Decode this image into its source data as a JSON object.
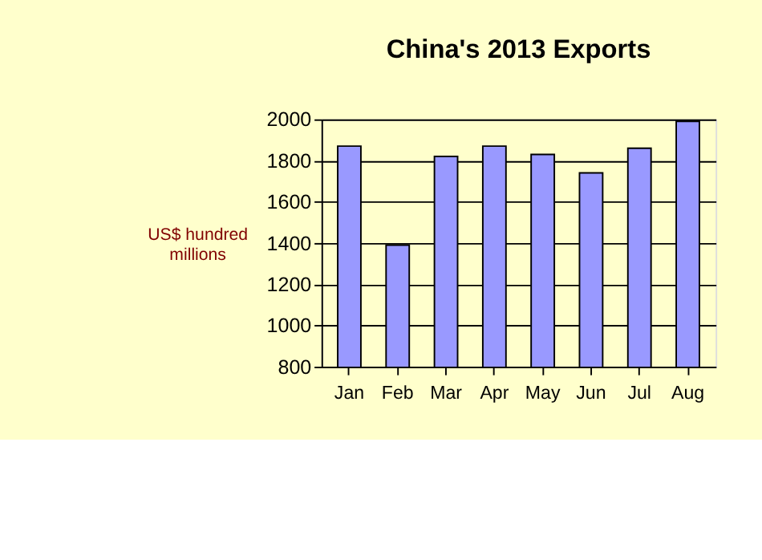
{
  "chart_data": {
    "type": "bar",
    "title": "China's 2013 Exports",
    "ylabel": "US$ hundred millions",
    "categories": [
      "Jan",
      "Feb",
      "Mar",
      "Apr",
      "May",
      "Jun",
      "Jul",
      "Aug"
    ],
    "values": [
      1870,
      1390,
      1820,
      1870,
      1830,
      1740,
      1860,
      1990
    ],
    "color": "#9999ff",
    "ylim": [
      800,
      2000
    ],
    "yticks": [
      800,
      1000,
      1200,
      1400,
      1600,
      1800,
      2000
    ],
    "grid": "y"
  }
}
